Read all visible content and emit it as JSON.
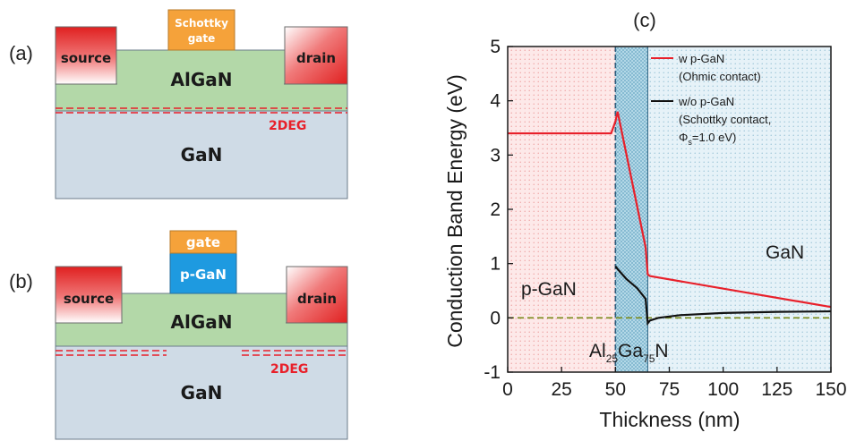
{
  "panel_a": {
    "label": "(a)",
    "source": "source",
    "drain": "drain",
    "gate_line1": "Schottky",
    "gate_line2": "gate",
    "barrier": "AlGaN",
    "twodeg": "2DEG",
    "buffer": "GaN"
  },
  "panel_b": {
    "label": "(b)",
    "source": "source",
    "drain": "drain",
    "gate": "gate",
    "pgan": "p-GaN",
    "barrier": "AlGaN",
    "twodeg": "2DEG",
    "buffer": "GaN"
  },
  "panel_c": {
    "label": "(c)",
    "region_pgan": "p-GaN",
    "region_algan_al": "Al",
    "region_algan_al_sub": "25",
    "region_algan_ga": "Ga",
    "region_algan_ga_sub": "75",
    "region_algan_n": "N",
    "region_gan": "GaN",
    "legend_1_line1": "w p-GaN",
    "legend_1_line2": "(Ohmic contact)",
    "legend_2_line1": "w/o p-GaN",
    "legend_2_line2": "(Schottky contact,",
    "legend_2_line3_phi": "Φ",
    "legend_2_line3_sub": "s",
    "legend_2_line3_rest": "=1.0 eV)"
  },
  "colors": {
    "algan": "#b3d8a8",
    "gan": "#cfdbe6",
    "gate_orange": "#f5a23a",
    "pgan_blue": "#1e9ae0",
    "twodeg_red": "#e8202a",
    "curve_red": "#e8202a",
    "curve_black": "#111111",
    "dash_olive": "#7a8a1a"
  },
  "chart_data": {
    "type": "line",
    "xlabel": "Thickness (nm)",
    "ylabel": "Conduction Band Energy (eV)",
    "xlim": [
      0,
      150
    ],
    "ylim": [
      -1,
      5
    ],
    "xticks": [
      0,
      25,
      50,
      75,
      100,
      125,
      150
    ],
    "yticks": [
      -1,
      0,
      1,
      2,
      3,
      4,
      5
    ],
    "regions": [
      {
        "name": "p-GaN",
        "x": [
          0,
          50
        ]
      },
      {
        "name": "Al25Ga75N",
        "x": [
          50,
          65
        ]
      },
      {
        "name": "GaN",
        "x": [
          65,
          150
        ]
      }
    ],
    "fermi_level": 0,
    "series": [
      {
        "name": "w p-GaN (Ohmic contact)",
        "color": "#e8202a",
        "x": [
          0,
          48,
          50,
          51,
          64,
          65,
          66,
          150
        ],
        "y": [
          3.4,
          3.4,
          3.62,
          3.8,
          1.3,
          0.8,
          0.77,
          0.2
        ]
      },
      {
        "name": "w/o p-GaN (Schottky contact, Φs=1.0 eV)",
        "color": "#111111",
        "x": [
          50,
          51,
          55,
          60,
          64,
          65,
          66,
          70,
          80,
          100,
          125,
          150
        ],
        "y": [
          0.95,
          0.9,
          0.72,
          0.55,
          0.35,
          -0.1,
          -0.05,
          0.0,
          0.05,
          0.09,
          0.11,
          0.12
        ]
      }
    ]
  }
}
